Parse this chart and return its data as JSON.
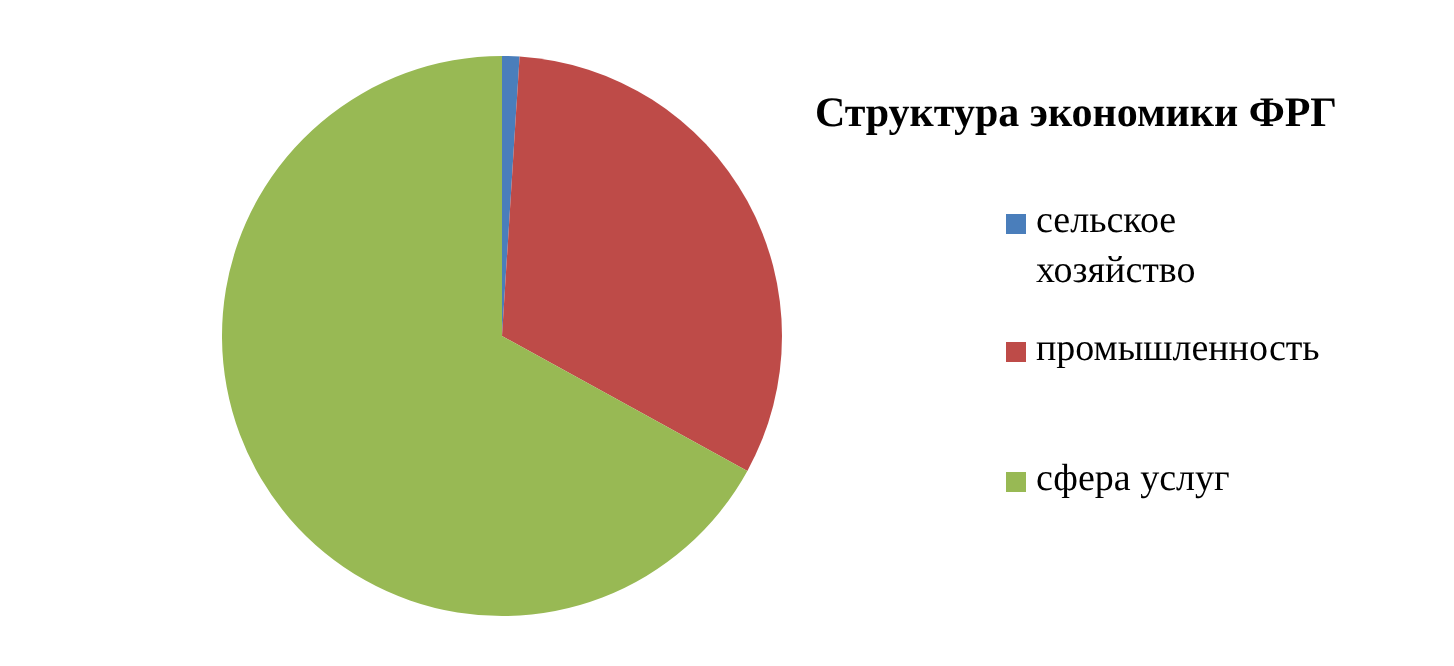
{
  "chart_data": {
    "type": "pie",
    "title": "Структура экономики ФРГ",
    "categories": [
      "сельское хозяйство",
      "промышленность",
      "сфера услуг"
    ],
    "values": [
      1,
      32,
      67
    ],
    "colors": [
      "#4a7ebb",
      "#be4b48",
      "#98b954"
    ],
    "legend": "right"
  }
}
